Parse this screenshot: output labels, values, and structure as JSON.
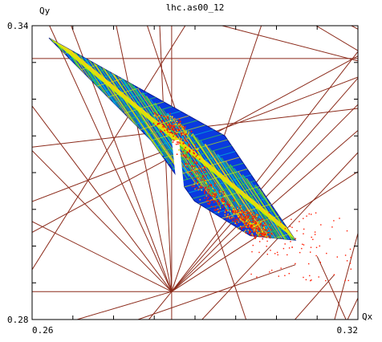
{
  "chart_data": {
    "type": "scatter",
    "title": "lhc.as00_12",
    "xlabel": "Qx",
    "ylabel": "Qy",
    "xlim": [
      0.26,
      0.32
    ],
    "ylim": [
      0.28,
      0.34
    ],
    "x_tick_labels": [
      {
        "value": 0.26,
        "label": "0.26"
      },
      {
        "value": 0.32,
        "label": "0.32"
      }
    ],
    "y_tick_labels": [
      {
        "value": 0.34,
        "label": "0.34"
      },
      {
        "value": 0.28,
        "label": "0.28"
      }
    ],
    "x_minor_ticks": [
      0.26,
      0.2675,
      0.275,
      0.2825,
      0.29,
      0.2975,
      0.305,
      0.3125,
      0.32
    ],
    "y_minor_ticks": [
      0.28,
      0.2875,
      0.295,
      0.3025,
      0.31,
      0.3175,
      0.325,
      0.3325,
      0.34
    ],
    "grid": false,
    "resonance_line_color": "#8b2a1a",
    "resonance_lines": [
      [
        [
          0.26,
          0.3333
        ],
        [
          0.32,
          0.3333
        ]
      ],
      [
        [
          0.26,
          0.2857
        ],
        [
          0.32,
          0.2857
        ]
      ],
      [
        [
          0.2857,
          0.28
        ],
        [
          0.2857,
          0.34
        ]
      ],
      [
        [
          0.26,
          0.3
        ],
        [
          0.2857,
          0.2857
        ]
      ],
      [
        [
          0.26,
          0.3145
        ],
        [
          0.2857,
          0.2857
        ]
      ],
      [
        [
          0.26,
          0.3236
        ],
        [
          0.2857,
          0.2857
        ]
      ],
      [
        [
          0.26,
          0.2773
        ],
        [
          0.2857,
          0.2857
        ]
      ],
      [
        [
          0.2815,
          0.28
        ],
        [
          0.2857,
          0.2857
        ]
      ],
      [
        [
          0.2672,
          0.34
        ],
        [
          0.2857,
          0.2857
        ]
      ],
      [
        [
          0.2755,
          0.34
        ],
        [
          0.2857,
          0.2857
        ]
      ],
      [
        [
          0.2632,
          0.34
        ],
        [
          0.2857,
          0.2857
        ]
      ],
      [
        [
          0.2835,
          0.34
        ],
        [
          0.2857,
          0.2857
        ]
      ],
      [
        [
          0.2857,
          0.2857
        ],
        [
          0.3022,
          0.34
        ]
      ],
      [
        [
          0.2857,
          0.2857
        ],
        [
          0.32,
          0.3186
        ]
      ],
      [
        [
          0.2857,
          0.2857
        ],
        [
          0.32,
          0.3347
        ]
      ],
      [
        [
          0.2857,
          0.2857
        ],
        [
          0.32,
          0.3239
        ]
      ],
      [
        [
          0.2857,
          0.2857
        ],
        [
          0.32,
          0.3293
        ]
      ],
      [
        [
          0.2857,
          0.2857
        ],
        [
          0.32,
          0.3102
        ]
      ],
      [
        [
          0.2913,
          0.28
        ],
        [
          0.32,
          0.3141
        ]
      ],
      [
        [
          0.2812,
          0.34
        ],
        [
          0.2994,
          0.28
        ]
      ],
      [
        [
          0.26,
          0.3152
        ],
        [
          0.32,
          0.3231
        ]
      ],
      [
        [
          0.26,
          0.3041
        ],
        [
          0.32,
          0.3295
        ]
      ],
      [
        [
          0.26,
          0.2978
        ],
        [
          0.32,
          0.3338
        ]
      ],
      [
        [
          0.26,
          0.2902
        ],
        [
          0.2882,
          0.34
        ]
      ],
      [
        [
          0.3157,
          0.28
        ],
        [
          0.32,
          0.2976
        ]
      ],
      [
        [
          0.3084,
          0.28
        ],
        [
          0.3157,
          0.2892
        ]
      ],
      [
        [
          0.295,
          0.34
        ],
        [
          0.32,
          0.3328
        ]
      ],
      [
        [
          0.2795,
          0.28
        ],
        [
          0.3085,
          0.2912
        ]
      ],
      [
        [
          0.3123,
          0.34
        ],
        [
          0.32,
          0.3349
        ]
      ],
      [
        [
          0.3188,
          0.34
        ],
        [
          0.32,
          0.3393
        ]
      ],
      [
        [
          0.3181,
          0.28
        ],
        [
          0.32,
          0.2844
        ]
      ],
      [
        [
          0.3178,
          0.28
        ],
        [
          0.3125,
          0.2929
        ]
      ]
    ],
    "color_scale": [
      "#0a1890",
      "#0a3ae0",
      "#00bcd4",
      "#3ed43e",
      "#c8f000",
      "#ffe000",
      "#ff9a00",
      "#ff1a00"
    ],
    "tune_footprint": {
      "upper_edge": [
        [
          0.2631,
          0.3375
        ],
        [
          0.2955,
          0.3175
        ],
        [
          0.3085,
          0.2962
        ]
      ],
      "lower_edge": [
        [
          0.2631,
          0.3375
        ],
        [
          0.2819,
          0.3166
        ],
        [
          0.2899,
          0.3042
        ],
        [
          0.3002,
          0.2971
        ],
        [
          0.3085,
          0.2962
        ]
      ],
      "gap": [
        [
          0.2864,
          0.3166
        ],
        [
          0.2876,
          0.3037
        ]
      ]
    },
    "chaotic_cluster": [
      [
        0.2835,
        0.3216
      ],
      [
        0.2875,
        0.3177
      ],
      [
        0.2915,
        0.3068
      ],
      [
        0.2975,
        0.3018
      ],
      [
        0.3002,
        0.2996
      ],
      [
        0.3024,
        0.298
      ]
    ]
  }
}
